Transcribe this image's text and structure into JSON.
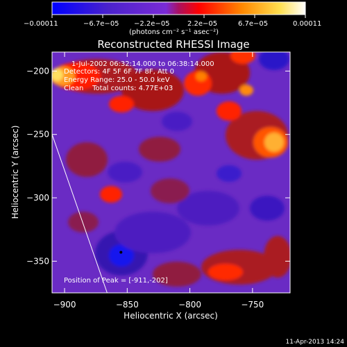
{
  "chart_data": {
    "type": "heatmap",
    "title": "Reconstructed RHESSI Image",
    "xlabel": "Heliocentric X (arcsec)",
    "ylabel": "Heliocentric Y (arcsec)",
    "xlim": [
      -910,
      -720
    ],
    "ylim": [
      -375,
      -185
    ],
    "x_ticks": [
      -900,
      -850,
      -800,
      -750
    ],
    "x_tick_labels": [
      "−900",
      "−850",
      "−800",
      "−750"
    ],
    "y_ticks": [
      -200,
      -250,
      -300,
      -350
    ],
    "y_tick_labels": [
      "−200",
      "−250",
      "−300",
      "−350"
    ],
    "colorbar": {
      "ticks": [
        -0.00011,
        -6.7e-05,
        -2.2e-05,
        2.2e-05,
        6.7e-05,
        0.00011
      ],
      "tick_labels": [
        "−0.00011",
        "−6.7e−05",
        "−2.2e−05",
        "2.2e−05",
        "6.7e−05",
        "0.00011"
      ],
      "units_label": "(photons cm⁻² s⁻¹ asec⁻²)",
      "colors": [
        "#0000ff",
        "#5a1fd0",
        "#7a2bd6",
        "#ff0000",
        "#ff8800",
        "#ffee55",
        "#ffffff"
      ]
    },
    "annotations": [
      "1-Jul-2002 06:32:14.000 to 06:38:14.000",
      "Detectors: 4F 5F 6F 7F 8F, Att 0",
      "Energy Range: 25.0 - 50.0 keV",
      "Clean    Total counts: 4.77E+03"
    ],
    "peak_label": "Position of Peak = [-911,-202]",
    "peak_position": [
      -911,
      -202
    ],
    "marker_point": [
      -855,
      -343
    ],
    "limb_line": [
      [
        -910,
        -250
      ],
      [
        -866,
        -375
      ]
    ]
  },
  "footer": {
    "date": "11-Apr-2013 14:24"
  }
}
